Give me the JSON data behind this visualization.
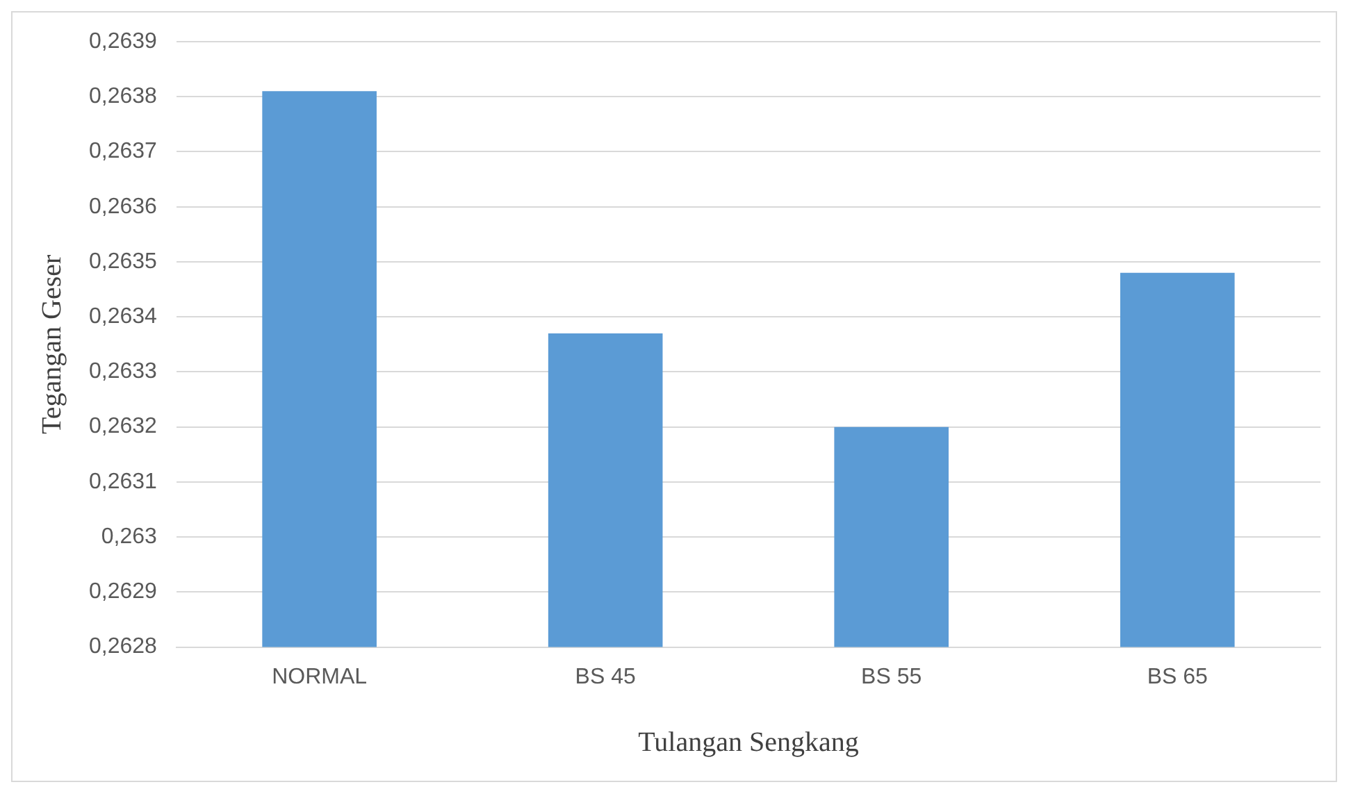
{
  "chart_data": {
    "type": "bar",
    "xlabel": "Tulangan Sengkang",
    "ylabel": "Tegangan Geser",
    "categories": [
      "NORMAL",
      "BS 45",
      "BS 55",
      "BS 65"
    ],
    "values": [
      0.26381,
      0.26337,
      0.2632,
      0.26348
    ],
    "color": "#5b9bd5",
    "ylim": [
      0.2628,
      0.2639
    ],
    "yticks": [
      {
        "value": 0.2628,
        "label": "0,2628"
      },
      {
        "value": 0.2629,
        "label": "0,2629"
      },
      {
        "value": 0.263,
        "label": "0,263"
      },
      {
        "value": 0.2631,
        "label": "0,2631"
      },
      {
        "value": 0.2632,
        "label": "0,2632"
      },
      {
        "value": 0.2633,
        "label": "0,2633"
      },
      {
        "value": 0.2634,
        "label": "0,2634"
      },
      {
        "value": 0.2635,
        "label": "0,2635"
      },
      {
        "value": 0.2636,
        "label": "0,2636"
      },
      {
        "value": 0.2637,
        "label": "0,2637"
      },
      {
        "value": 0.2638,
        "label": "0,2638"
      },
      {
        "value": 0.2639,
        "label": "0,2639"
      }
    ],
    "grid": "y"
  }
}
